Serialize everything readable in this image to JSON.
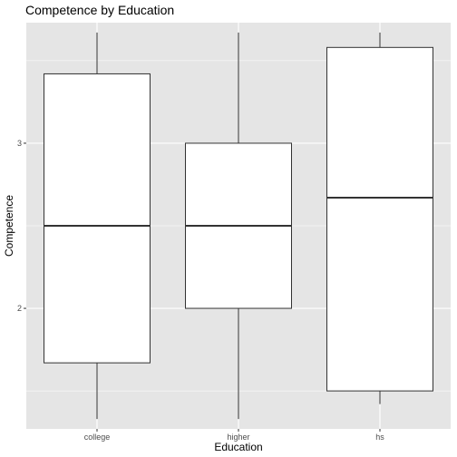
{
  "chart_data": {
    "type": "boxplot",
    "title": "Competence by Education",
    "xlabel": "Education",
    "ylabel": "Competence",
    "categories": [
      "college",
      "higher",
      "hs"
    ],
    "boxes": [
      {
        "category": "college",
        "whisker_low": 1.33,
        "q1": 1.67,
        "median": 2.5,
        "q3": 3.42,
        "whisker_high": 3.67
      },
      {
        "category": "higher",
        "whisker_low": 1.33,
        "q1": 2.0,
        "median": 2.5,
        "q3": 3.0,
        "whisker_high": 3.67
      },
      {
        "category": "hs",
        "whisker_low": 1.42,
        "q1": 1.5,
        "median": 2.67,
        "q3": 3.58,
        "whisker_high": 3.67
      }
    ],
    "y_ticks": [
      {
        "value": 2,
        "label": "2"
      },
      {
        "value": 3,
        "label": "3"
      }
    ],
    "ylim": [
      1.27,
      3.73
    ],
    "grid": true,
    "legend": "none"
  },
  "colors": {
    "panel": "#e5e5e5",
    "gridline": "#ffffff",
    "box_fill": "#ffffff",
    "box_stroke": "#333333"
  }
}
